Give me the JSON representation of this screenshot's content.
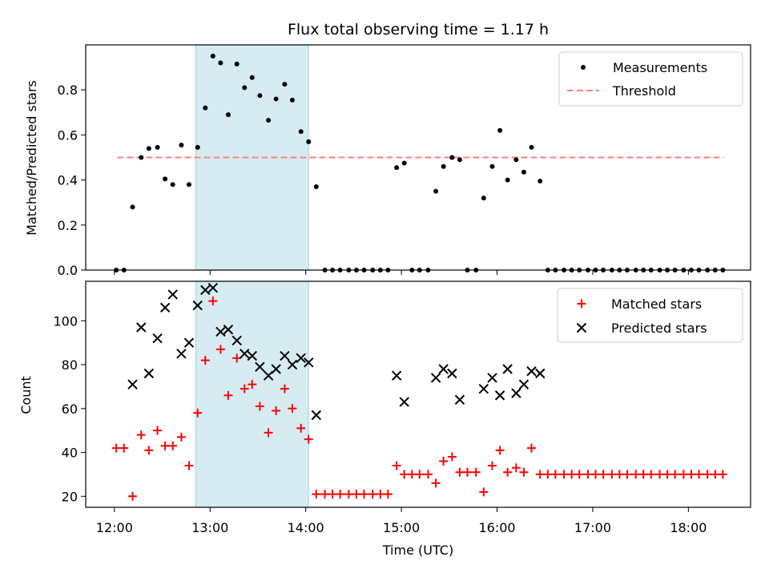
{
  "chart_data": {
    "type": "scatter",
    "title": "Flux total observing time = 1.17 h",
    "xlabel": "Time (UTC)",
    "x_ticks": [
      "12:00",
      "13:00",
      "14:00",
      "15:00",
      "16:00",
      "17:00",
      "18:00"
    ],
    "x_unit": "hours UTC",
    "xlim": [
      11.7,
      18.65
    ],
    "shaded_interval": [
      12.85,
      14.03
    ],
    "top": {
      "ylabel": "Matched/Predicted stars",
      "ylim": [
        0,
        1.0
      ],
      "y_ticks": [
        "0.0",
        "0.2",
        "0.4",
        "0.6",
        "0.8"
      ],
      "legend": {
        "placement": "top-right",
        "entries": [
          "Measurements",
          "Threshold"
        ]
      },
      "threshold": 0.5,
      "threshold_x": [
        12.03,
        18.37
      ],
      "series": [
        {
          "name": "Measurements",
          "x": [
            12.02,
            12.1,
            12.19,
            12.28,
            12.36,
            12.45,
            12.53,
            12.61,
            12.7,
            12.78,
            12.87,
            12.95,
            13.03,
            13.11,
            13.19,
            13.28,
            13.36,
            13.44,
            13.52,
            13.61,
            13.69,
            13.78,
            13.86,
            13.95,
            14.03,
            14.11,
            14.2,
            14.28,
            14.36,
            14.45,
            14.53,
            14.61,
            14.7,
            14.78,
            14.86,
            14.95,
            15.03,
            15.11,
            15.19,
            15.28,
            15.36,
            15.44,
            15.53,
            15.61,
            15.69,
            15.78,
            15.86,
            15.95,
            16.03,
            16.11,
            16.2,
            16.28,
            16.36,
            16.45,
            16.53,
            16.61,
            16.7,
            16.78,
            16.86,
            16.95,
            17.03,
            17.11,
            17.2,
            17.28,
            17.36,
            17.45,
            17.53,
            17.61,
            17.7,
            17.78,
            17.86,
            17.95,
            18.03,
            18.11,
            18.2,
            18.28,
            18.36
          ],
          "y": [
            0,
            0,
            0.28,
            0.5,
            0.54,
            0.545,
            0.405,
            0.38,
            0.555,
            0.38,
            0.545,
            0.72,
            0.95,
            0.92,
            0.69,
            0.915,
            0.81,
            0.855,
            0.775,
            0.665,
            0.76,
            0.825,
            0.755,
            0.615,
            0.57,
            0.37,
            0,
            0,
            0,
            0,
            0,
            0,
            0,
            0,
            0,
            0.455,
            0.475,
            0,
            0,
            0,
            0.35,
            0.46,
            0.5,
            0.49,
            0,
            0,
            0.32,
            0.46,
            0.62,
            0.4,
            0.49,
            0.435,
            0.545,
            0.395,
            0,
            0,
            0,
            0,
            0,
            0,
            0,
            0,
            0,
            0,
            0,
            0,
            0,
            0,
            0,
            0,
            0,
            0,
            0,
            0,
            0,
            0,
            0
          ]
        }
      ]
    },
    "bottom": {
      "ylabel": "Count",
      "ylim": [
        15,
        118
      ],
      "y_ticks": [
        "20",
        "40",
        "60",
        "80",
        "100"
      ],
      "legend": {
        "placement": "top-right",
        "entries": [
          "Matched stars",
          "Predicted stars"
        ]
      },
      "series": [
        {
          "name": "Matched stars",
          "x": [
            12.02,
            12.1,
            12.19,
            12.28,
            12.36,
            12.45,
            12.53,
            12.61,
            12.7,
            12.78,
            12.87,
            12.95,
            13.03,
            13.11,
            13.19,
            13.28,
            13.36,
            13.44,
            13.52,
            13.61,
            13.69,
            13.78,
            13.86,
            13.95,
            14.03,
            14.11,
            14.2,
            14.28,
            14.36,
            14.45,
            14.53,
            14.61,
            14.7,
            14.78,
            14.86,
            14.95,
            15.03,
            15.11,
            15.19,
            15.28,
            15.36,
            15.44,
            15.53,
            15.61,
            15.69,
            15.78,
            15.86,
            15.95,
            16.03,
            16.11,
            16.2,
            16.28,
            16.36,
            16.45,
            16.53,
            16.61,
            16.7,
            16.78,
            16.86,
            16.95,
            17.03,
            17.11,
            17.2,
            17.28,
            17.36,
            17.45,
            17.53,
            17.61,
            17.7,
            17.78,
            17.86,
            17.95,
            18.03,
            18.11,
            18.2,
            18.28,
            18.36
          ],
          "y": [
            42,
            42,
            20,
            48,
            41,
            50,
            43,
            43,
            47,
            34,
            58,
            82,
            109,
            87,
            66,
            83,
            69,
            71,
            61,
            49,
            59,
            69,
            60,
            51,
            46,
            21,
            21,
            21,
            21,
            21,
            21,
            21,
            21,
            21,
            21,
            34,
            30,
            30,
            30,
            30,
            26,
            36,
            38,
            31,
            31,
            31,
            22,
            34,
            41,
            31,
            33,
            31,
            42,
            30,
            30,
            30,
            30,
            30,
            30,
            30,
            30,
            30,
            30,
            30,
            30,
            30,
            30,
            30,
            30,
            30,
            30,
            30,
            30,
            30,
            30,
            30,
            30
          ]
        },
        {
          "name": "Predicted stars",
          "x": [
            12.19,
            12.28,
            12.36,
            12.45,
            12.53,
            12.61,
            12.7,
            12.78,
            12.87,
            12.95,
            13.03,
            13.11,
            13.19,
            13.28,
            13.36,
            13.44,
            13.52,
            13.61,
            13.69,
            13.78,
            13.86,
            13.95,
            14.03,
            14.11,
            14.95,
            15.03,
            15.36,
            15.44,
            15.53,
            15.61,
            15.86,
            15.95,
            16.03,
            16.11,
            16.2,
            16.28,
            16.36,
            16.45
          ],
          "y": [
            71,
            97,
            76,
            92,
            106,
            112,
            85,
            90,
            107,
            114,
            115,
            95,
            96,
            91,
            85,
            84,
            79,
            75,
            78,
            84,
            80,
            83,
            81,
            57,
            75,
            63,
            74,
            78,
            76,
            64,
            69,
            74,
            66,
            78,
            67,
            71,
            77,
            76
          ]
        }
      ]
    },
    "colors": {
      "measurement": "#000000",
      "threshold": "#ff7f7f",
      "matched": "#ff0000",
      "predicted": "#000000",
      "shade": "#add8e6"
    }
  }
}
